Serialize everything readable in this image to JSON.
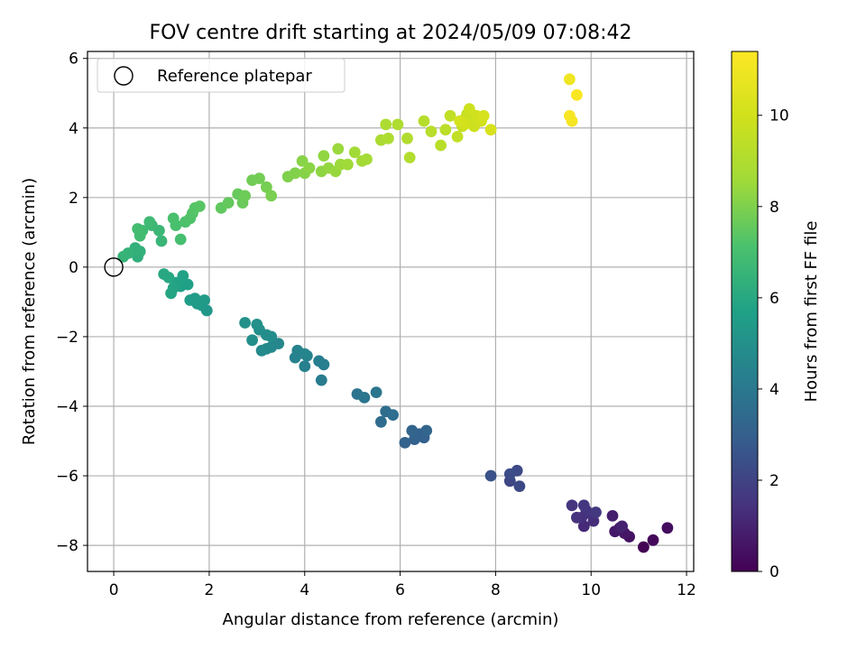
{
  "chart_data": {
    "type": "scatter",
    "title": "FOV centre drift starting at 2024/05/09 07:08:42",
    "xlabel": "Angular distance from reference (arcmin)",
    "ylabel": "Rotation from reference (arcmin)",
    "xlim": [
      -0.55,
      12.15
    ],
    "ylim": [
      -8.75,
      6.2
    ],
    "xticks": [
      0,
      2,
      4,
      6,
      8,
      10,
      12
    ],
    "yticks": [
      -8,
      -6,
      -4,
      -2,
      0,
      2,
      4,
      6
    ],
    "grid": true,
    "legend": {
      "position": "top-left",
      "entries": [
        "Reference platepar"
      ]
    },
    "reference_point": {
      "x": 0,
      "y": 0,
      "label": "Reference platepar"
    },
    "colorbar": {
      "label": "Hours from first FF file",
      "colormap": "viridis",
      "min": 0,
      "max": 11.4,
      "ticks": [
        0,
        2,
        4,
        6,
        8,
        10
      ]
    },
    "series": [
      {
        "points": [
          [
            11.1,
            -8.05,
            0.05
          ],
          [
            11.3,
            -7.85,
            0.2
          ],
          [
            11.6,
            -7.5,
            0.35
          ],
          [
            10.8,
            -7.75,
            0.5
          ],
          [
            10.7,
            -7.65,
            0.6
          ],
          [
            10.5,
            -7.6,
            0.7
          ],
          [
            10.6,
            -7.5,
            0.8
          ],
          [
            10.45,
            -7.15,
            0.9
          ],
          [
            10.65,
            -7.45,
            1.0
          ],
          [
            9.85,
            -7.45,
            1.2
          ],
          [
            10.05,
            -7.3,
            1.3
          ],
          [
            9.8,
            -7.2,
            1.35
          ],
          [
            10.0,
            -7.1,
            1.4
          ],
          [
            9.7,
            -7.2,
            1.45
          ],
          [
            9.9,
            -7.0,
            1.5
          ],
          [
            9.6,
            -6.85,
            1.55
          ],
          [
            9.85,
            -6.85,
            1.6
          ],
          [
            10.1,
            -7.05,
            1.65
          ],
          [
            8.3,
            -6.15,
            2.1
          ],
          [
            8.5,
            -6.3,
            2.2
          ],
          [
            8.45,
            -5.85,
            2.25
          ],
          [
            8.3,
            -5.95,
            2.3
          ],
          [
            7.9,
            -6.0,
            2.5
          ],
          [
            6.4,
            -4.8,
            3.0
          ],
          [
            6.5,
            -4.9,
            3.05
          ],
          [
            6.3,
            -4.95,
            3.1
          ],
          [
            6.1,
            -5.05,
            3.15
          ],
          [
            6.25,
            -4.7,
            3.2
          ],
          [
            6.55,
            -4.7,
            3.25
          ],
          [
            5.6,
            -4.45,
            3.5
          ],
          [
            5.7,
            -4.15,
            3.55
          ],
          [
            5.85,
            -4.25,
            3.6
          ],
          [
            5.1,
            -3.65,
            3.8
          ],
          [
            5.25,
            -3.75,
            3.85
          ],
          [
            5.5,
            -3.6,
            3.9
          ],
          [
            4.35,
            -3.25,
            4.1
          ],
          [
            4.4,
            -2.8,
            4.2
          ],
          [
            4.3,
            -2.7,
            4.25
          ],
          [
            4.0,
            -2.85,
            4.3
          ],
          [
            4.05,
            -2.55,
            4.35
          ],
          [
            3.8,
            -2.6,
            4.4
          ],
          [
            3.85,
            -2.4,
            4.45
          ],
          [
            4.0,
            -2.5,
            4.5
          ],
          [
            3.45,
            -2.2,
            4.6
          ],
          [
            3.3,
            -2.3,
            4.65
          ],
          [
            3.2,
            -2.35,
            4.7
          ],
          [
            3.1,
            -2.4,
            4.75
          ],
          [
            3.3,
            -2.0,
            4.8
          ],
          [
            3.2,
            -1.95,
            4.85
          ],
          [
            3.05,
            -1.8,
            4.9
          ],
          [
            2.9,
            -2.1,
            4.95
          ],
          [
            3.0,
            -1.65,
            5.0
          ],
          [
            2.75,
            -1.6,
            5.05
          ],
          [
            1.95,
            -1.25,
            5.3
          ],
          [
            1.85,
            -1.1,
            5.35
          ],
          [
            1.9,
            -0.95,
            5.4
          ],
          [
            1.75,
            -1.05,
            5.45
          ],
          [
            1.7,
            -0.9,
            5.5
          ],
          [
            1.6,
            -0.95,
            5.55
          ],
          [
            1.55,
            -0.5,
            5.65
          ],
          [
            1.4,
            -0.55,
            5.7
          ],
          [
            1.45,
            -0.25,
            5.75
          ],
          [
            1.3,
            -0.45,
            5.8
          ],
          [
            1.25,
            -0.6,
            5.85
          ],
          [
            1.2,
            -0.75,
            5.9
          ],
          [
            1.15,
            -0.3,
            5.95
          ],
          [
            1.05,
            -0.2,
            6.0
          ],
          [
            0.5,
            0.3,
            6.3
          ],
          [
            0.45,
            0.55,
            6.35
          ],
          [
            0.55,
            0.45,
            6.4
          ],
          [
            0.3,
            0.4,
            6.45
          ],
          [
            0.2,
            0.3,
            6.5
          ],
          [
            1.0,
            0.75,
            6.6
          ],
          [
            0.95,
            1.05,
            6.65
          ],
          [
            0.8,
            1.2,
            6.7
          ],
          [
            0.75,
            1.3,
            6.75
          ],
          [
            0.6,
            1.05,
            6.8
          ],
          [
            0.55,
            0.9,
            6.85
          ],
          [
            0.5,
            1.1,
            6.9
          ],
          [
            1.4,
            0.8,
            7.0
          ],
          [
            1.3,
            1.2,
            7.05
          ],
          [
            1.25,
            1.4,
            7.1
          ],
          [
            1.5,
            1.3,
            7.15
          ],
          [
            1.6,
            1.4,
            7.2
          ],
          [
            1.65,
            1.55,
            7.25
          ],
          [
            1.7,
            1.7,
            7.3
          ],
          [
            1.8,
            1.75,
            7.35
          ],
          [
            2.25,
            1.7,
            7.5
          ],
          [
            2.4,
            1.85,
            7.55
          ],
          [
            2.6,
            2.1,
            7.6
          ],
          [
            2.7,
            1.85,
            7.65
          ],
          [
            2.75,
            2.05,
            7.7
          ],
          [
            2.9,
            2.5,
            7.75
          ],
          [
            3.05,
            2.55,
            7.8
          ],
          [
            3.2,
            2.3,
            7.85
          ],
          [
            3.3,
            2.05,
            7.9
          ],
          [
            3.65,
            2.6,
            8.0
          ],
          [
            3.8,
            2.7,
            8.05
          ],
          [
            4.0,
            2.7,
            8.1
          ],
          [
            3.95,
            3.05,
            8.15
          ],
          [
            4.1,
            2.85,
            8.2
          ],
          [
            4.35,
            2.75,
            8.25
          ],
          [
            4.4,
            3.2,
            8.3
          ],
          [
            4.5,
            2.85,
            8.35
          ],
          [
            4.65,
            2.75,
            8.4
          ],
          [
            4.7,
            3.4,
            8.45
          ],
          [
            4.75,
            2.95,
            8.5
          ],
          [
            4.9,
            2.95,
            8.55
          ],
          [
            5.05,
            3.3,
            8.6
          ],
          [
            5.2,
            3.05,
            8.65
          ],
          [
            5.3,
            3.1,
            8.7
          ],
          [
            5.6,
            3.65,
            8.85
          ],
          [
            5.7,
            4.1,
            8.9
          ],
          [
            5.75,
            3.7,
            8.95
          ],
          [
            5.95,
            4.1,
            9.0
          ],
          [
            6.15,
            3.7,
            9.05
          ],
          [
            6.2,
            3.15,
            9.1
          ],
          [
            6.5,
            4.2,
            9.2
          ],
          [
            6.65,
            3.9,
            9.25
          ],
          [
            6.85,
            3.5,
            9.3
          ],
          [
            6.95,
            3.95,
            9.35
          ],
          [
            7.05,
            4.35,
            9.5
          ],
          [
            7.2,
            3.75,
            9.55
          ],
          [
            7.3,
            4.05,
            9.6
          ],
          [
            7.35,
            4.25,
            9.65
          ],
          [
            7.4,
            4.4,
            9.7
          ],
          [
            7.45,
            4.15,
            9.75
          ],
          [
            7.5,
            4.3,
            9.8
          ],
          [
            7.55,
            4.05,
            9.85
          ],
          [
            7.45,
            4.55,
            9.9
          ],
          [
            7.6,
            4.35,
            9.95
          ],
          [
            7.7,
            4.2,
            10.0
          ],
          [
            7.35,
            4.1,
            10.05
          ],
          [
            7.25,
            4.2,
            10.1
          ],
          [
            7.75,
            4.35,
            10.15
          ],
          [
            7.9,
            3.95,
            10.2
          ],
          [
            9.55,
            5.4,
            11.0
          ],
          [
            9.6,
            4.2,
            11.1
          ],
          [
            9.55,
            4.35,
            11.2
          ],
          [
            9.7,
            4.95,
            11.3
          ]
        ]
      }
    ]
  }
}
